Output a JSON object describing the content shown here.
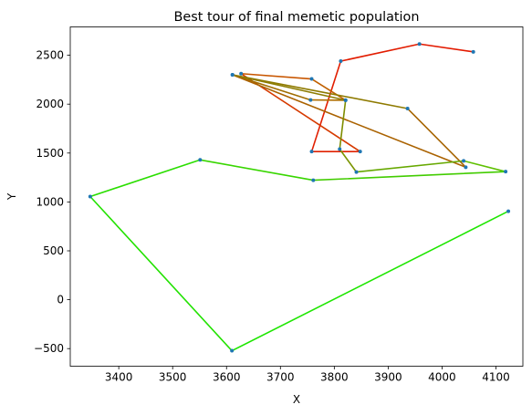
{
  "chart_data": {
    "type": "line",
    "title": "Best tour of final memetic population",
    "xlabel": "X",
    "ylabel": "Y",
    "xlim": [
      3310,
      4150
    ],
    "ylim": [
      -680,
      2790
    ],
    "x_ticks": [
      3400,
      3500,
      3600,
      3700,
      3800,
      3900,
      4000,
      4100
    ],
    "y_ticks": [
      -500,
      0,
      500,
      1000,
      1500,
      2000,
      2500
    ],
    "grid": false,
    "legend": "none",
    "marker_color": "#1f77b4",
    "tour": [
      {
        "x": 4058,
        "y": 2535
      },
      {
        "x": 3958,
        "y": 2615
      },
      {
        "x": 3812,
        "y": 2440
      },
      {
        "x": 3758,
        "y": 1515
      },
      {
        "x": 3848,
        "y": 1515
      },
      {
        "x": 3627,
        "y": 2312
      },
      {
        "x": 3758,
        "y": 2258
      },
      {
        "x": 3821,
        "y": 2040
      },
      {
        "x": 3756,
        "y": 2043
      },
      {
        "x": 3611,
        "y": 2300
      },
      {
        "x": 4044,
        "y": 1355
      },
      {
        "x": 3936,
        "y": 1955
      },
      {
        "x": 3611,
        "y": 2300
      },
      {
        "x": 3821,
        "y": 2040
      },
      {
        "x": 3810,
        "y": 1540
      },
      {
        "x": 3841,
        "y": 1306
      },
      {
        "x": 4040,
        "y": 1420
      },
      {
        "x": 4118,
        "y": 1310
      },
      {
        "x": 3761,
        "y": 1222
      },
      {
        "x": 3551,
        "y": 1430
      },
      {
        "x": 3347,
        "y": 1055
      },
      {
        "x": 3610,
        "y": -522
      },
      {
        "x": 4123,
        "y": 905
      }
    ],
    "segment_colors": [
      "#e31a00",
      "#e21c00",
      "#e11e00",
      "#e02000",
      "#d63a00",
      "#c85600",
      "#c06000",
      "#b06e00",
      "#a06d00",
      "#aa6200",
      "#a66400",
      "#8e7a00",
      "#8c7c00",
      "#7e8d00",
      "#7a9400",
      "#66a800",
      "#5ec000",
      "#42cc00",
      "#38d600",
      "#2ade00",
      "#22e200",
      "#1ee600"
    ]
  }
}
